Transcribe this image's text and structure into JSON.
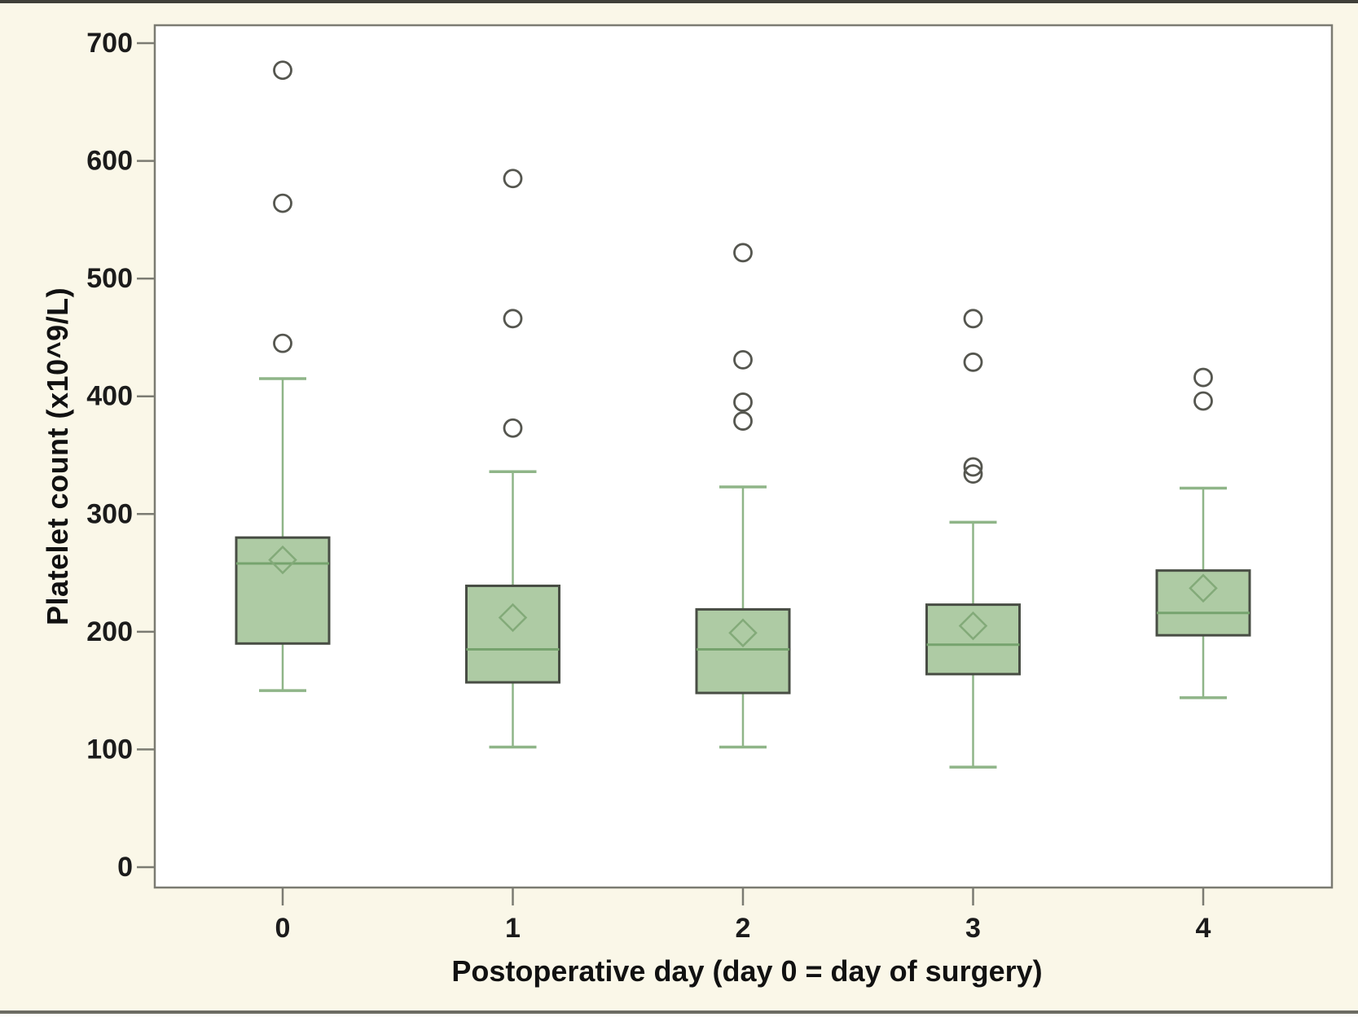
{
  "figure": {
    "background": "#FAF7E8",
    "plot_background": "#FFFFFF",
    "frame_color": "#7B7B72",
    "tick_color": "#7B7B72",
    "tick_label_color": "#1B1B1B",
    "top_border_color": "#3F3F39",
    "bottom_border_color": "#6C6C63"
  },
  "chart_data": {
    "type": "box",
    "title": "",
    "xlabel": "Postoperative day (day 0 = day of surgery)",
    "ylabel": "Platelet count (x10^9/L)",
    "categories": [
      "0",
      "1",
      "2",
      "3",
      "4"
    ],
    "ylim": [
      0,
      700
    ],
    "y_ticks": [
      0,
      100,
      200,
      300,
      400,
      500,
      600,
      700
    ],
    "grid": false,
    "legend": "none",
    "series": [
      {
        "category": "0",
        "whisker_low": 150,
        "q1": 190,
        "median": 258,
        "q3": 280,
        "whisker_high": 415,
        "mean": 261,
        "outliers": [
          445,
          564,
          677
        ]
      },
      {
        "category": "1",
        "whisker_low": 102,
        "q1": 157,
        "median": 185,
        "q3": 239,
        "whisker_high": 336,
        "mean": 212,
        "outliers": [
          373,
          466,
          585
        ]
      },
      {
        "category": "2",
        "whisker_low": 102,
        "q1": 148,
        "median": 185,
        "q3": 219,
        "whisker_high": 323,
        "mean": 199,
        "outliers": [
          379,
          395,
          431,
          522
        ]
      },
      {
        "category": "3",
        "whisker_low": 85,
        "q1": 164,
        "median": 189,
        "q3": 223,
        "whisker_high": 293,
        "mean": 205,
        "outliers": [
          334,
          340,
          429,
          466
        ]
      },
      {
        "category": "4",
        "whisker_low": 144,
        "q1": 197,
        "median": 216,
        "q3": 252,
        "whisker_high": 322,
        "mean": 237,
        "outliers": [
          396,
          416
        ]
      }
    ],
    "colors": {
      "box_fill": "#AECBA4",
      "box_border": "#484D44",
      "whisker": "#8FB588",
      "median": "#76A36E",
      "mean_marker": "#83AA79",
      "outlier": "#55564F"
    },
    "marker_shapes": {
      "mean": "diamond-outline",
      "outlier": "circle-outline"
    }
  }
}
